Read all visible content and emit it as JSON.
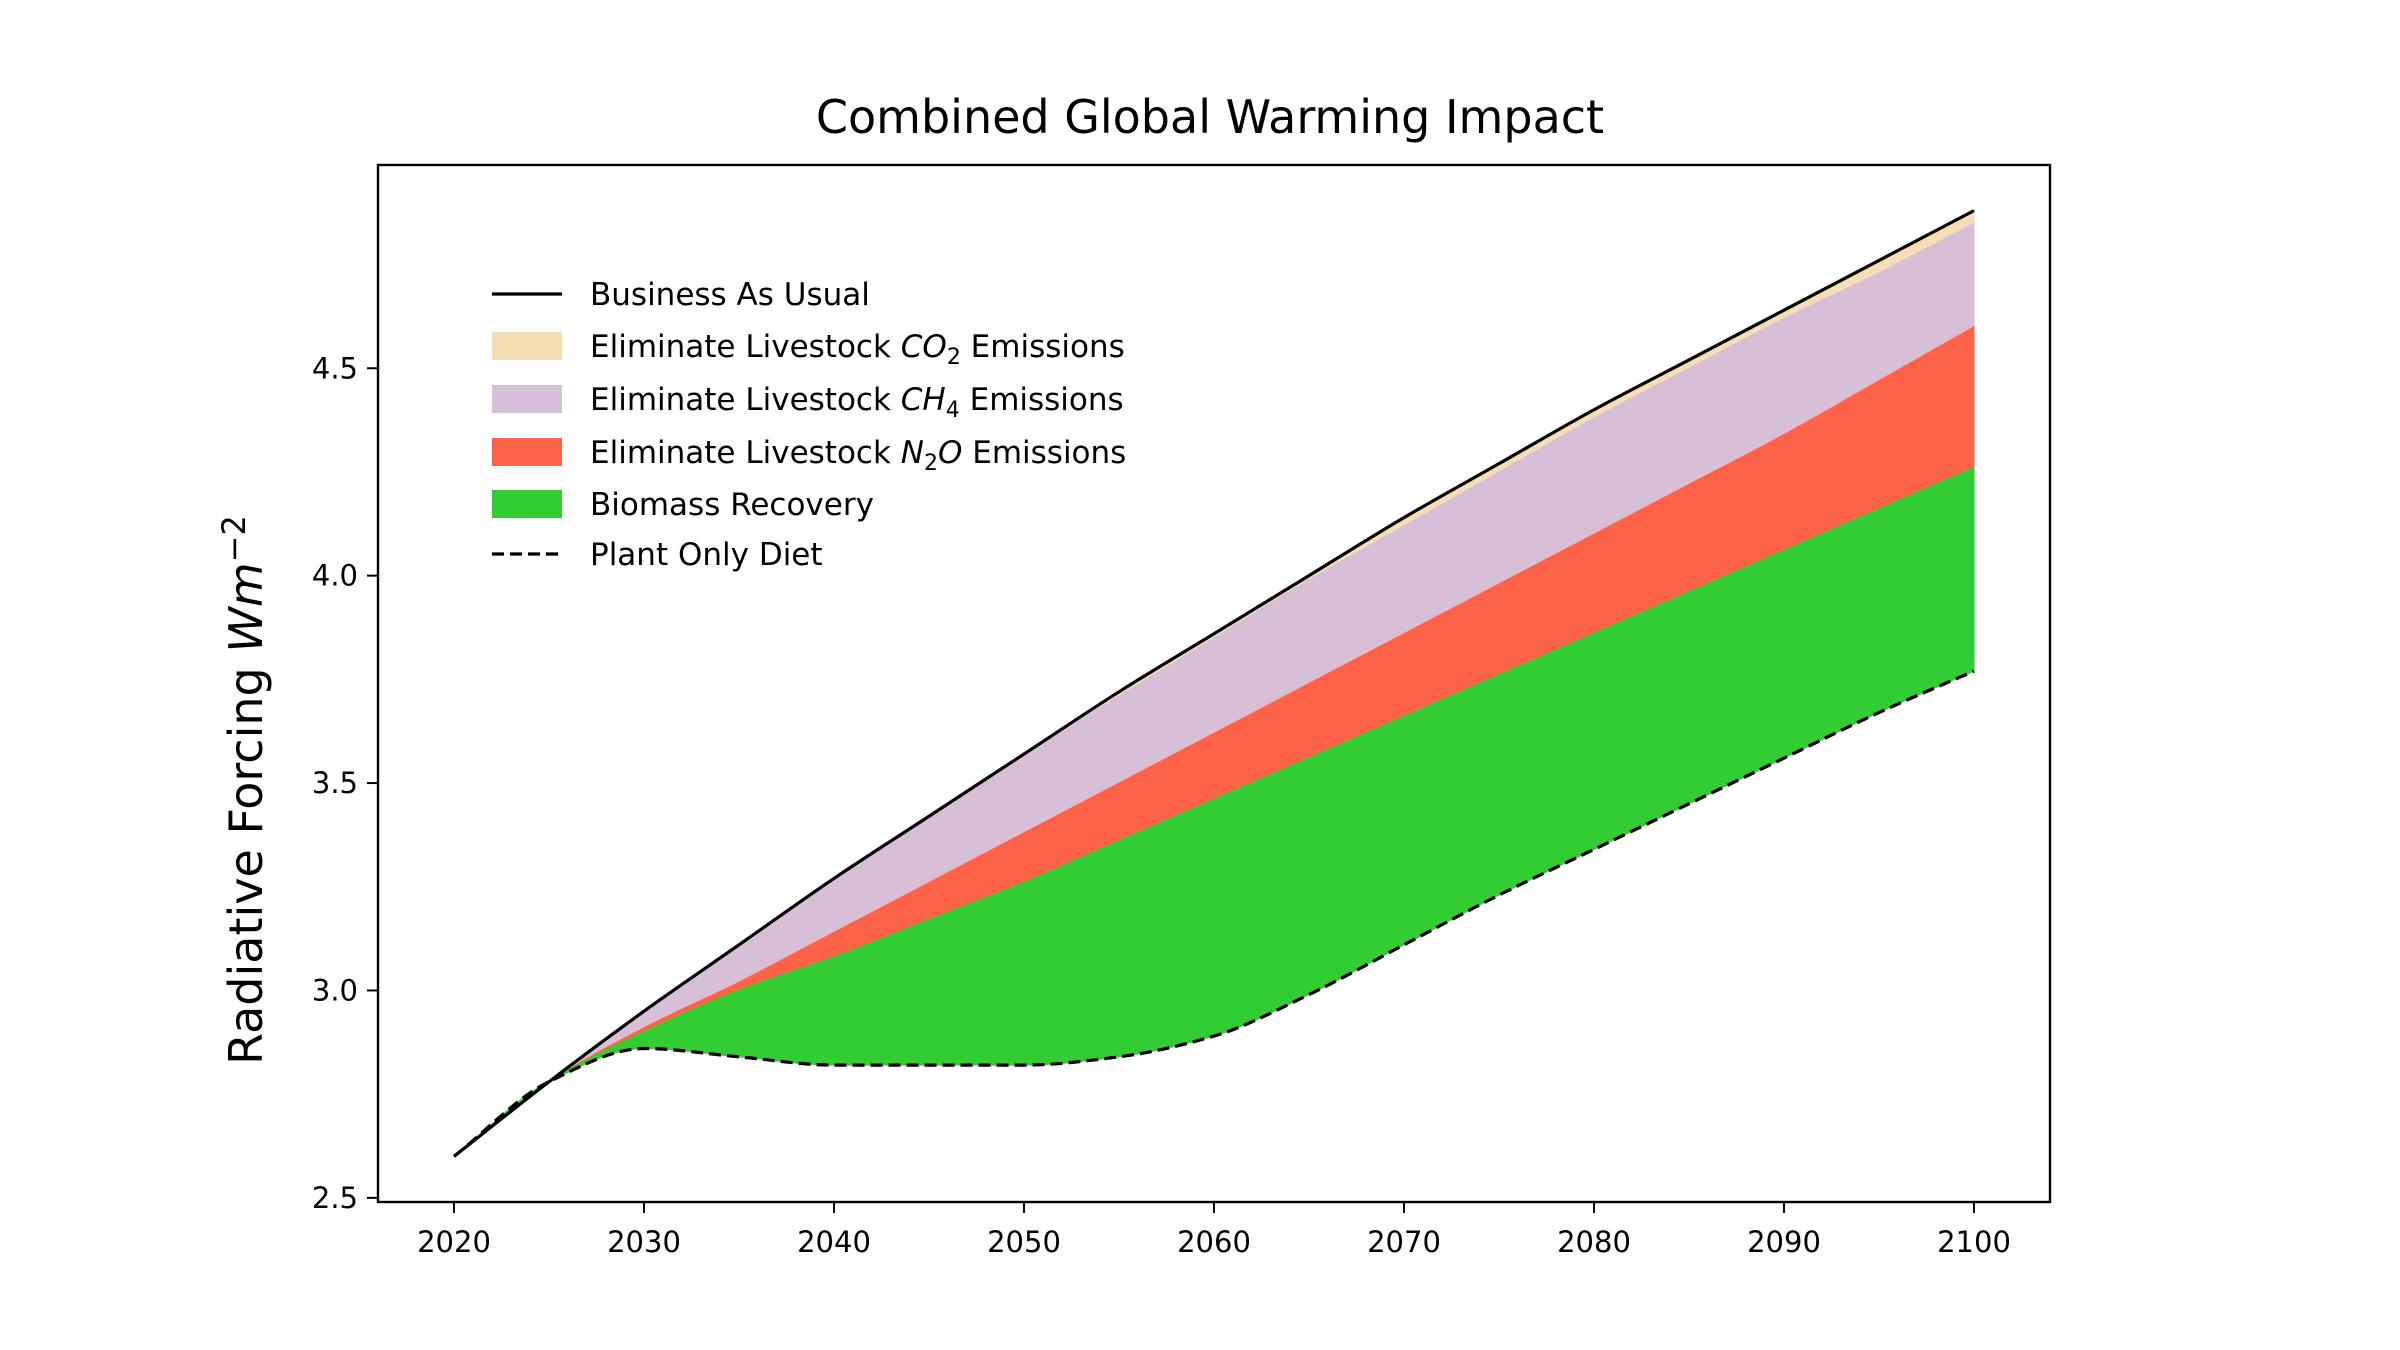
{
  "chart_data": {
    "type": "area",
    "title": "Combined Global Warming Impact",
    "ylabel": {
      "text": "Radiative Forcing ",
      "unit_base": "Wm",
      "unit_exp": "−2"
    },
    "xlabel": "",
    "xlim": [
      2016,
      2104
    ],
    "ylim": [
      2.49,
      4.99
    ],
    "x_ticks": [
      2020,
      2030,
      2040,
      2050,
      2060,
      2070,
      2080,
      2090,
      2100
    ],
    "x_tick_labels": [
      "2020",
      "2030",
      "2040",
      "2050",
      "2060",
      "2070",
      "2080",
      "2090",
      "2100"
    ],
    "y_ticks": [
      2.5,
      3.0,
      3.5,
      4.0,
      4.5
    ],
    "y_tick_labels": [
      "2.5",
      "3.0",
      "3.5",
      "4.0",
      "4.5"
    ],
    "grid": false,
    "legend_position": "upper-left",
    "x": [
      2020,
      2025,
      2030,
      2035,
      2040,
      2045,
      2050,
      2055,
      2060,
      2065,
      2070,
      2075,
      2080,
      2085,
      2090,
      2095,
      2100
    ],
    "series": [
      {
        "name": "Business As Usual",
        "kind": "line",
        "style": "solid",
        "color": "#000000",
        "values": [
          2.6,
          2.78,
          2.95,
          3.11,
          3.27,
          3.42,
          3.57,
          3.72,
          3.86,
          4.0,
          4.14,
          4.27,
          4.4,
          4.52,
          4.64,
          4.76,
          4.88
        ]
      },
      {
        "name": "Eliminate Livestock CO2 Emissions",
        "label_parts": [
          "Eliminate Livestock ",
          "CO",
          "2",
          " Emissions"
        ],
        "kind": "band",
        "color": "#F5DEB3",
        "upper": [
          2.6,
          2.78,
          2.95,
          3.11,
          3.27,
          3.42,
          3.57,
          3.72,
          3.86,
          4.0,
          4.14,
          4.27,
          4.4,
          4.52,
          4.64,
          4.76,
          4.88
        ],
        "lower": [
          2.6,
          2.78,
          2.95,
          3.11,
          3.27,
          3.42,
          3.57,
          3.71,
          3.85,
          3.99,
          4.12,
          4.25,
          4.38,
          4.5,
          4.62,
          4.73,
          4.85
        ]
      },
      {
        "name": "Eliminate Livestock CH4 Emissions",
        "label_parts": [
          "Eliminate Livestock ",
          "CH",
          "4",
          " Emissions"
        ],
        "kind": "band",
        "color": "#D8BFD8",
        "upper": [
          2.6,
          2.78,
          2.95,
          3.11,
          3.27,
          3.42,
          3.57,
          3.71,
          3.85,
          3.99,
          4.12,
          4.25,
          4.38,
          4.5,
          4.62,
          4.73,
          4.85
        ],
        "lower": [
          2.6,
          2.78,
          2.91,
          3.02,
          3.14,
          3.26,
          3.38,
          3.5,
          3.62,
          3.74,
          3.86,
          3.98,
          4.1,
          4.22,
          4.34,
          4.47,
          4.6
        ]
      },
      {
        "name": "Eliminate Livestock N2O Emissions",
        "label_parts": [
          "Eliminate Livestock ",
          "N",
          "2",
          "O",
          " Emissions"
        ],
        "kind": "band",
        "color": "#FF6347",
        "upper": [
          2.6,
          2.78,
          2.91,
          3.02,
          3.14,
          3.26,
          3.38,
          3.5,
          3.62,
          3.74,
          3.86,
          3.98,
          4.1,
          4.22,
          4.34,
          4.47,
          4.6
        ],
        "lower": [
          2.6,
          2.78,
          2.9,
          3.0,
          3.08,
          3.17,
          3.26,
          3.36,
          3.46,
          3.56,
          3.66,
          3.76,
          3.86,
          3.96,
          4.06,
          4.16,
          4.26
        ]
      },
      {
        "name": "Biomass Recovery",
        "kind": "band",
        "color": "#32CD32",
        "upper": [
          2.6,
          2.78,
          2.9,
          3.0,
          3.08,
          3.17,
          3.26,
          3.36,
          3.46,
          3.56,
          3.66,
          3.76,
          3.86,
          3.96,
          4.06,
          4.16,
          4.26
        ],
        "lower": [
          2.6,
          2.78,
          2.86,
          2.84,
          2.82,
          2.82,
          2.82,
          2.84,
          2.89,
          2.99,
          3.11,
          3.23,
          3.34,
          3.45,
          3.56,
          3.67,
          3.77
        ]
      },
      {
        "name": "Plant Only Diet",
        "kind": "line",
        "style": "dashed",
        "color": "#000000",
        "values": [
          2.6,
          2.78,
          2.86,
          2.84,
          2.82,
          2.82,
          2.82,
          2.84,
          2.89,
          2.99,
          3.11,
          3.23,
          3.34,
          3.45,
          3.56,
          3.67,
          3.77
        ]
      }
    ]
  }
}
